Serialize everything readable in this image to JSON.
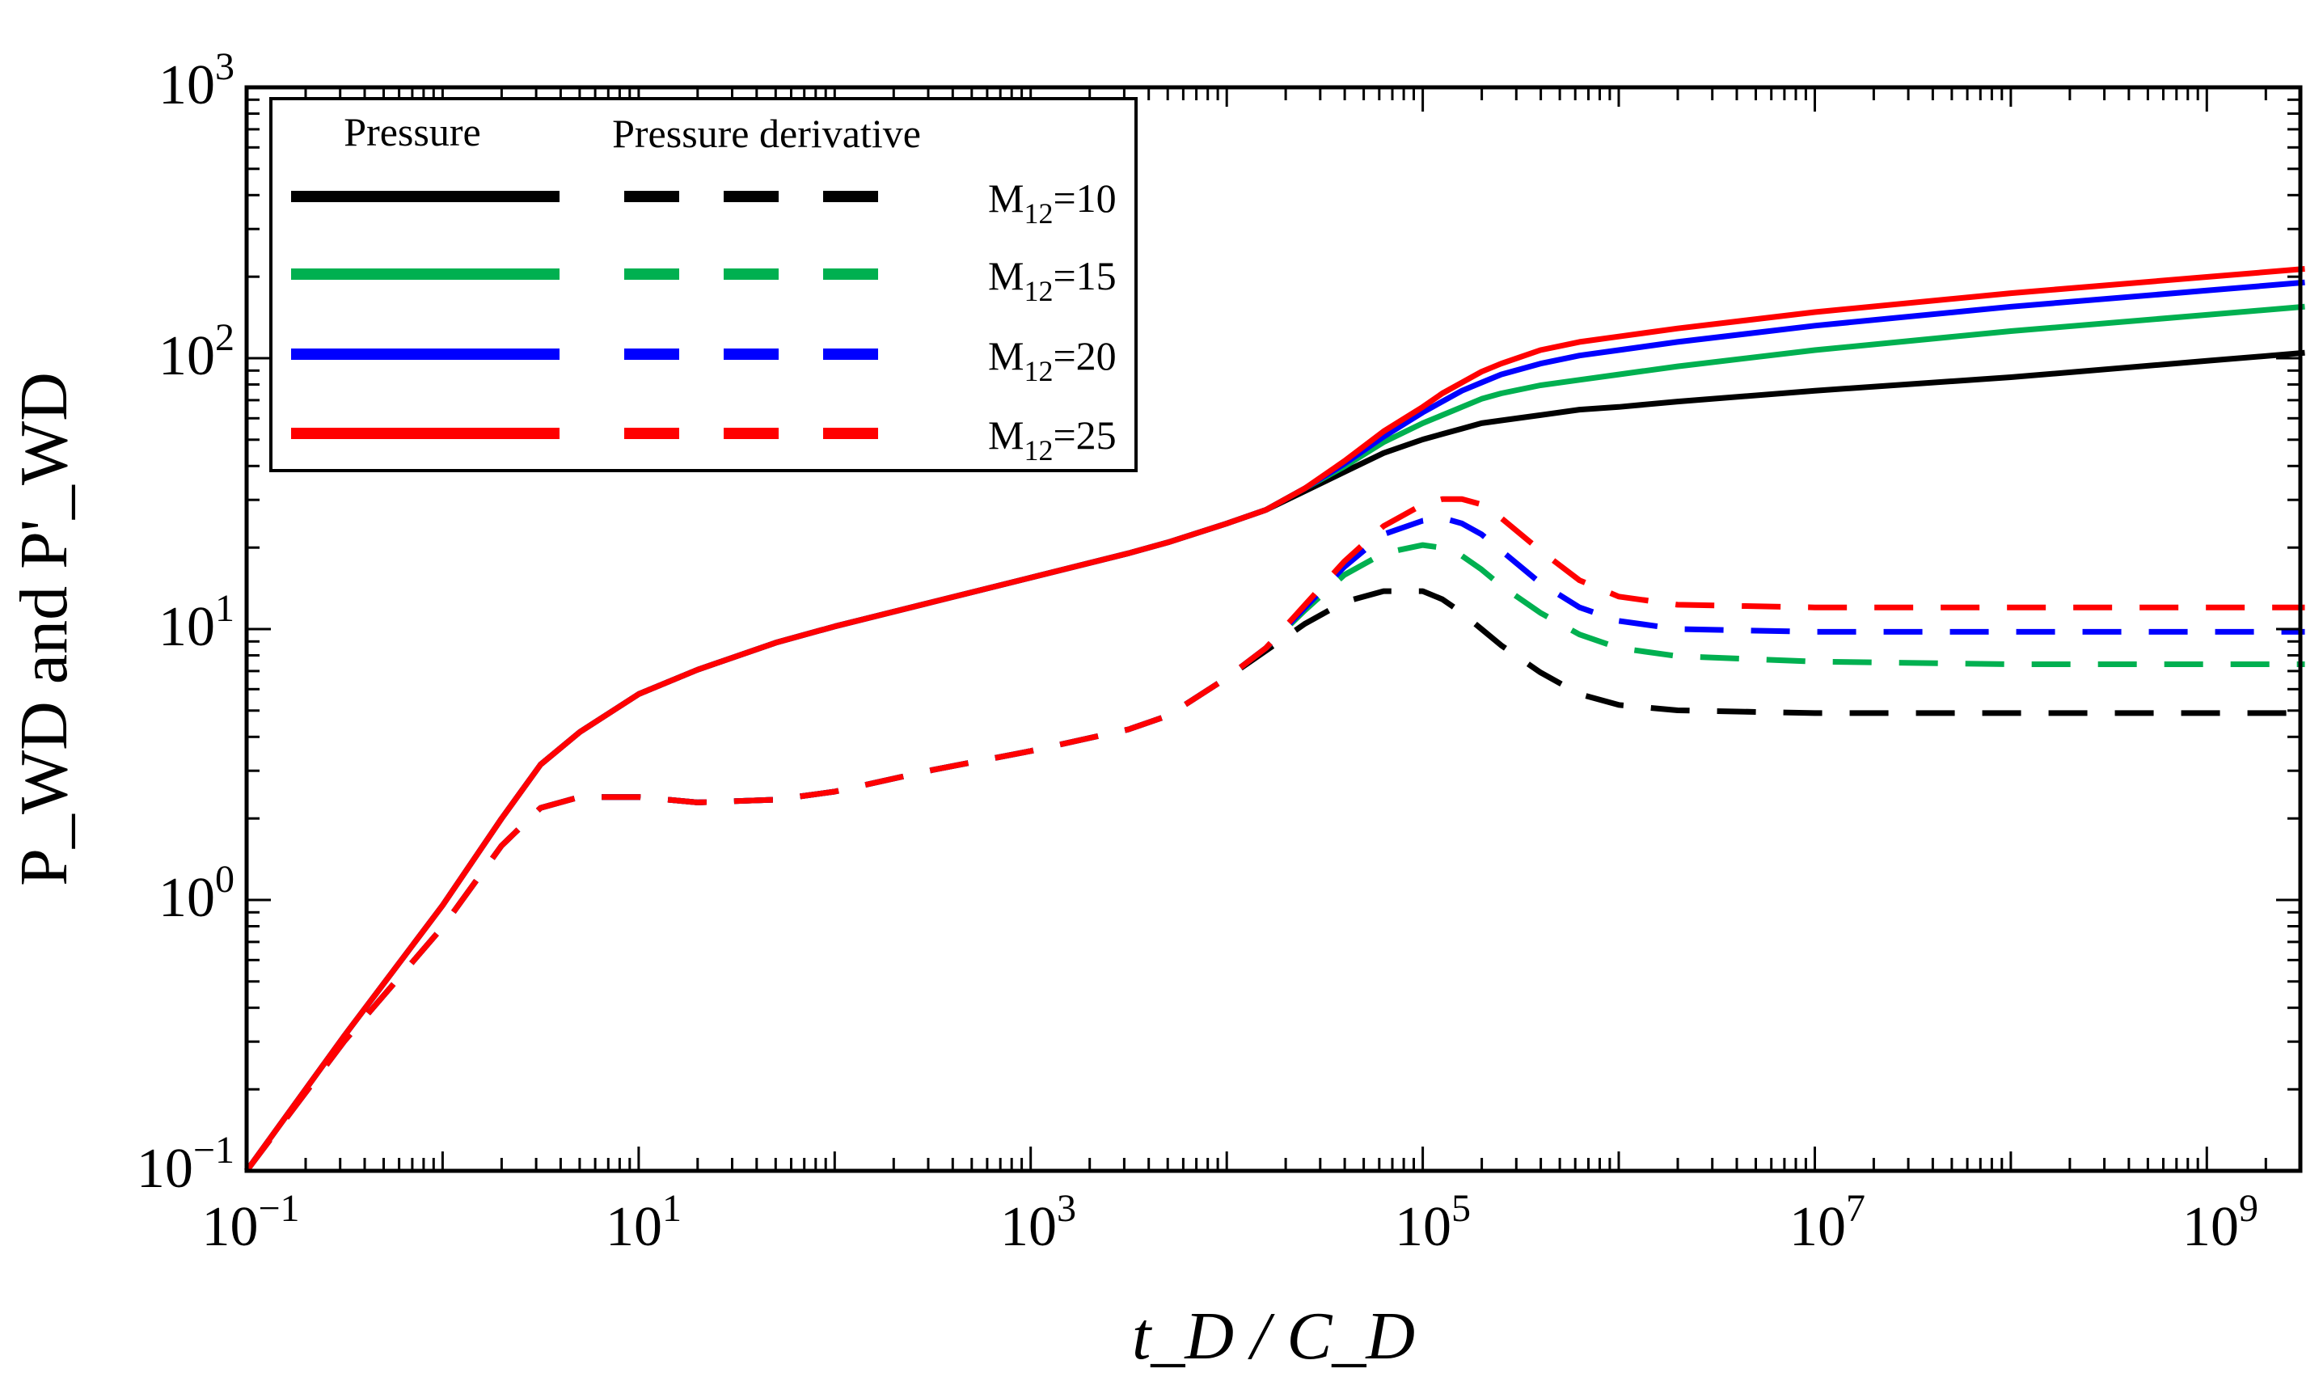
{
  "chart_data": {
    "type": "line",
    "title": "",
    "xlabel": "t_D / C_D",
    "ylabel": "P_WD and P'_WD",
    "xscale": "log",
    "yscale": "log",
    "xlim": [
      0.1,
      3000000000
    ],
    "ylim": [
      0.1,
      1000
    ],
    "grid": false,
    "legend_position": "top-left",
    "legend_headers": [
      "Pressure",
      "Pressure derivative"
    ],
    "x_ticks": [
      {
        "base": "10",
        "exp": "−1"
      },
      {
        "base": "10",
        "exp": "1"
      },
      {
        "base": "10",
        "exp": "3"
      },
      {
        "base": "10",
        "exp": "5"
      },
      {
        "base": "10",
        "exp": "7"
      },
      {
        "base": "10",
        "exp": "9"
      }
    ],
    "y_ticks": [
      {
        "base": "10",
        "exp": "−1"
      },
      {
        "base": "10",
        "exp": "0"
      },
      {
        "base": "10",
        "exp": "1"
      },
      {
        "base": "10",
        "exp": "2"
      },
      {
        "base": "10",
        "exp": "3"
      }
    ],
    "log10_x": [
      -1,
      -0.5,
      0,
      0.3,
      0.5,
      0.7,
      1,
      1.3,
      1.7,
      2,
      2.5,
      3,
      3.5,
      3.7,
      4,
      4.2,
      4.4,
      4.6,
      4.8,
      5,
      5.1,
      5.2,
      5.3,
      5.4,
      5.6,
      5.8,
      6,
      6.3,
      7,
      8,
      9,
      9.5
    ],
    "series": [
      {
        "name": "M12=10",
        "label_main": "M",
        "label_sub": "12",
        "label_value": "=10",
        "color": "#000000",
        "pressure": [
          -1,
          -0.5,
          -0.02,
          0.3,
          0.5,
          0.62,
          0.76,
          0.85,
          0.95,
          1.01,
          1.1,
          1.19,
          1.28,
          1.32,
          1.39,
          1.44,
          1.51,
          1.58,
          1.65,
          1.7,
          1.72,
          1.74,
          1.76,
          1.77,
          1.79,
          1.81,
          1.82,
          1.84,
          1.88,
          1.93,
          1.99,
          2.02
        ],
        "derivative": [
          -1,
          -0.52,
          -0.1,
          0.2,
          0.34,
          0.38,
          0.38,
          0.36,
          0.37,
          0.4,
          0.48,
          0.55,
          0.63,
          0.68,
          0.82,
          0.92,
          1.02,
          1.1,
          1.14,
          1.14,
          1.11,
          1.06,
          1.0,
          0.94,
          0.84,
          0.76,
          0.72,
          0.7,
          0.69,
          0.69,
          0.69,
          0.69
        ]
      },
      {
        "name": "M12=15",
        "label_main": "M",
        "label_sub": "12",
        "label_value": "=15",
        "color": "#00b050",
        "pressure": [
          -1,
          -0.5,
          -0.02,
          0.3,
          0.5,
          0.62,
          0.76,
          0.85,
          0.95,
          1.01,
          1.1,
          1.19,
          1.28,
          1.32,
          1.39,
          1.44,
          1.52,
          1.6,
          1.69,
          1.76,
          1.79,
          1.82,
          1.85,
          1.87,
          1.9,
          1.92,
          1.94,
          1.97,
          2.03,
          2.1,
          2.16,
          2.19
        ],
        "derivative": [
          -1,
          -0.52,
          -0.1,
          0.2,
          0.34,
          0.38,
          0.38,
          0.36,
          0.37,
          0.4,
          0.48,
          0.55,
          0.63,
          0.68,
          0.82,
          0.93,
          1.07,
          1.2,
          1.28,
          1.31,
          1.3,
          1.27,
          1.22,
          1.16,
          1.06,
          0.98,
          0.93,
          0.9,
          0.88,
          0.87,
          0.87,
          0.87
        ]
      },
      {
        "name": "M12=20",
        "label_main": "M",
        "label_sub": "12",
        "label_value": "=20",
        "color": "#0000ff",
        "pressure": [
          -1,
          -0.5,
          -0.02,
          0.3,
          0.5,
          0.62,
          0.76,
          0.85,
          0.95,
          1.01,
          1.1,
          1.19,
          1.28,
          1.32,
          1.39,
          1.44,
          1.52,
          1.61,
          1.71,
          1.8,
          1.84,
          1.88,
          1.91,
          1.94,
          1.98,
          2.01,
          2.03,
          2.06,
          2.12,
          2.19,
          2.25,
          2.28
        ],
        "derivative": [
          -1,
          -0.52,
          -0.1,
          0.2,
          0.34,
          0.38,
          0.38,
          0.36,
          0.37,
          0.4,
          0.48,
          0.55,
          0.63,
          0.68,
          0.82,
          0.93,
          1.08,
          1.23,
          1.35,
          1.4,
          1.41,
          1.39,
          1.35,
          1.29,
          1.17,
          1.08,
          1.03,
          1.0,
          0.99,
          0.99,
          0.99,
          0.99
        ]
      },
      {
        "name": "M12=25",
        "label_main": "M",
        "label_sub": "12",
        "label_value": "=25",
        "color": "#ff0000",
        "pressure": [
          -1,
          -0.5,
          -0.02,
          0.3,
          0.5,
          0.62,
          0.76,
          0.85,
          0.95,
          1.01,
          1.1,
          1.19,
          1.28,
          1.32,
          1.39,
          1.44,
          1.52,
          1.62,
          1.73,
          1.82,
          1.87,
          1.91,
          1.95,
          1.98,
          2.03,
          2.06,
          2.08,
          2.11,
          2.17,
          2.24,
          2.3,
          2.33
        ],
        "derivative": [
          -1,
          -0.52,
          -0.1,
          0.2,
          0.34,
          0.38,
          0.38,
          0.36,
          0.37,
          0.4,
          0.48,
          0.55,
          0.63,
          0.68,
          0.82,
          0.93,
          1.09,
          1.25,
          1.38,
          1.46,
          1.48,
          1.48,
          1.46,
          1.41,
          1.29,
          1.18,
          1.12,
          1.09,
          1.08,
          1.08,
          1.08,
          1.08
        ]
      }
    ]
  }
}
